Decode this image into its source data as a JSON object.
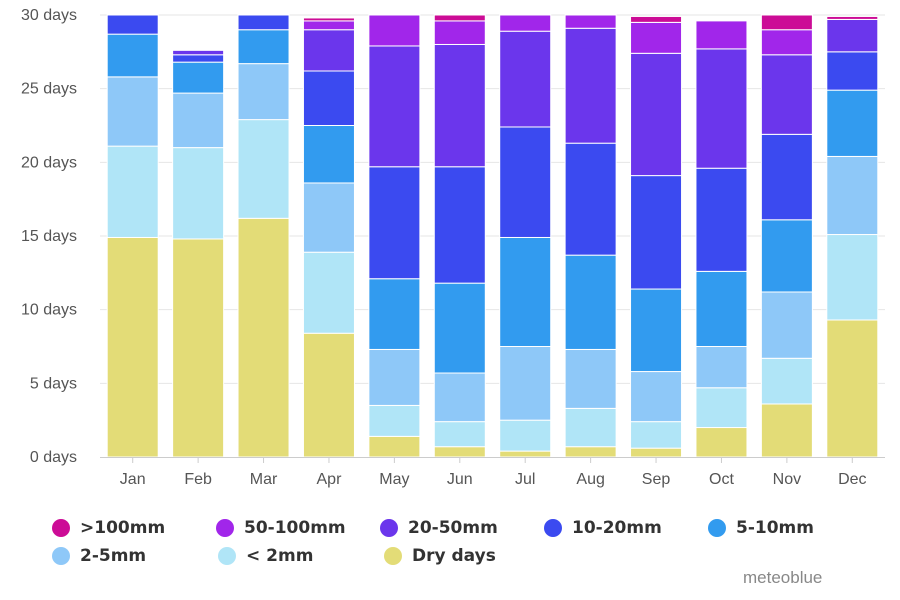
{
  "chart_data": {
    "type": "bar",
    "stacked": true,
    "categories": [
      "Jan",
      "Feb",
      "Mar",
      "Apr",
      "May",
      "Jun",
      "Jul",
      "Aug",
      "Sep",
      "Oct",
      "Nov",
      "Dec"
    ],
    "y_ticks": [
      "0 days",
      "5 days",
      "10 days",
      "15 days",
      "20 days",
      "25 days",
      "30 days"
    ],
    "ylim": [
      0,
      30
    ],
    "grid": true,
    "legend_position": "bottom",
    "series": [
      {
        "name": "Dry days",
        "color": "#e3dc77",
        "values": [
          14.9,
          14.8,
          16.2,
          8.4,
          1.4,
          0.7,
          0.4,
          0.7,
          0.6,
          2.0,
          3.6,
          9.3
        ]
      },
      {
        "name": "< 2mm",
        "color": "#b0e5f7",
        "values": [
          6.2,
          6.2,
          6.7,
          5.5,
          2.1,
          1.7,
          2.1,
          2.6,
          1.8,
          2.7,
          3.1,
          5.8
        ]
      },
      {
        "name": "2-5mm",
        "color": "#8ec8f8",
        "values": [
          4.7,
          3.7,
          3.8,
          4.7,
          3.8,
          3.3,
          5.0,
          4.0,
          3.4,
          2.8,
          4.5,
          5.3
        ]
      },
      {
        "name": "5-10mm",
        "color": "#329bef",
        "values": [
          2.9,
          2.1,
          2.3,
          3.9,
          4.8,
          6.1,
          7.4,
          6.4,
          5.6,
          5.1,
          4.9,
          4.5
        ]
      },
      {
        "name": "10-20mm",
        "color": "#3b4af0",
        "values": [
          1.4,
          0.5,
          1.0,
          3.7,
          7.6,
          7.9,
          7.5,
          7.6,
          7.7,
          7.0,
          5.8,
          2.6
        ]
      },
      {
        "name": "20-50mm",
        "color": "#6b36ec",
        "values": [
          0.0,
          0.3,
          0.0,
          2.8,
          8.2,
          8.3,
          6.5,
          7.8,
          8.3,
          8.1,
          5.4,
          2.2
        ]
      },
      {
        "name": "50-100mm",
        "color": "#a126ea",
        "values": [
          0.0,
          0.0,
          0.0,
          0.6,
          2.1,
          1.6,
          1.1,
          0.9,
          2.1,
          1.9,
          1.7,
          0.0
        ]
      },
      {
        "name": ">100mm",
        "color": "#cc0c96",
        "values": [
          0.0,
          0.0,
          0.0,
          0.2,
          0.0,
          0.4,
          0.0,
          0.0,
          0.4,
          0.0,
          1.0,
          0.2
        ]
      }
    ]
  },
  "legend": [
    {
      "label": ">100mm",
      "color": "#cc0c96"
    },
    {
      "label": "50-100mm",
      "color": "#a126ea"
    },
    {
      "label": "20-50mm",
      "color": "#6b36ec"
    },
    {
      "label": "10-20mm",
      "color": "#3b4af0"
    },
    {
      "label": "5-10mm",
      "color": "#329bef"
    },
    {
      "label": "2-5mm",
      "color": "#8ec8f8"
    },
    {
      "label": "< 2mm",
      "color": "#b0e5f7"
    },
    {
      "label": "Dry days",
      "color": "#e3dc77"
    }
  ],
  "credit": "meteoblue"
}
